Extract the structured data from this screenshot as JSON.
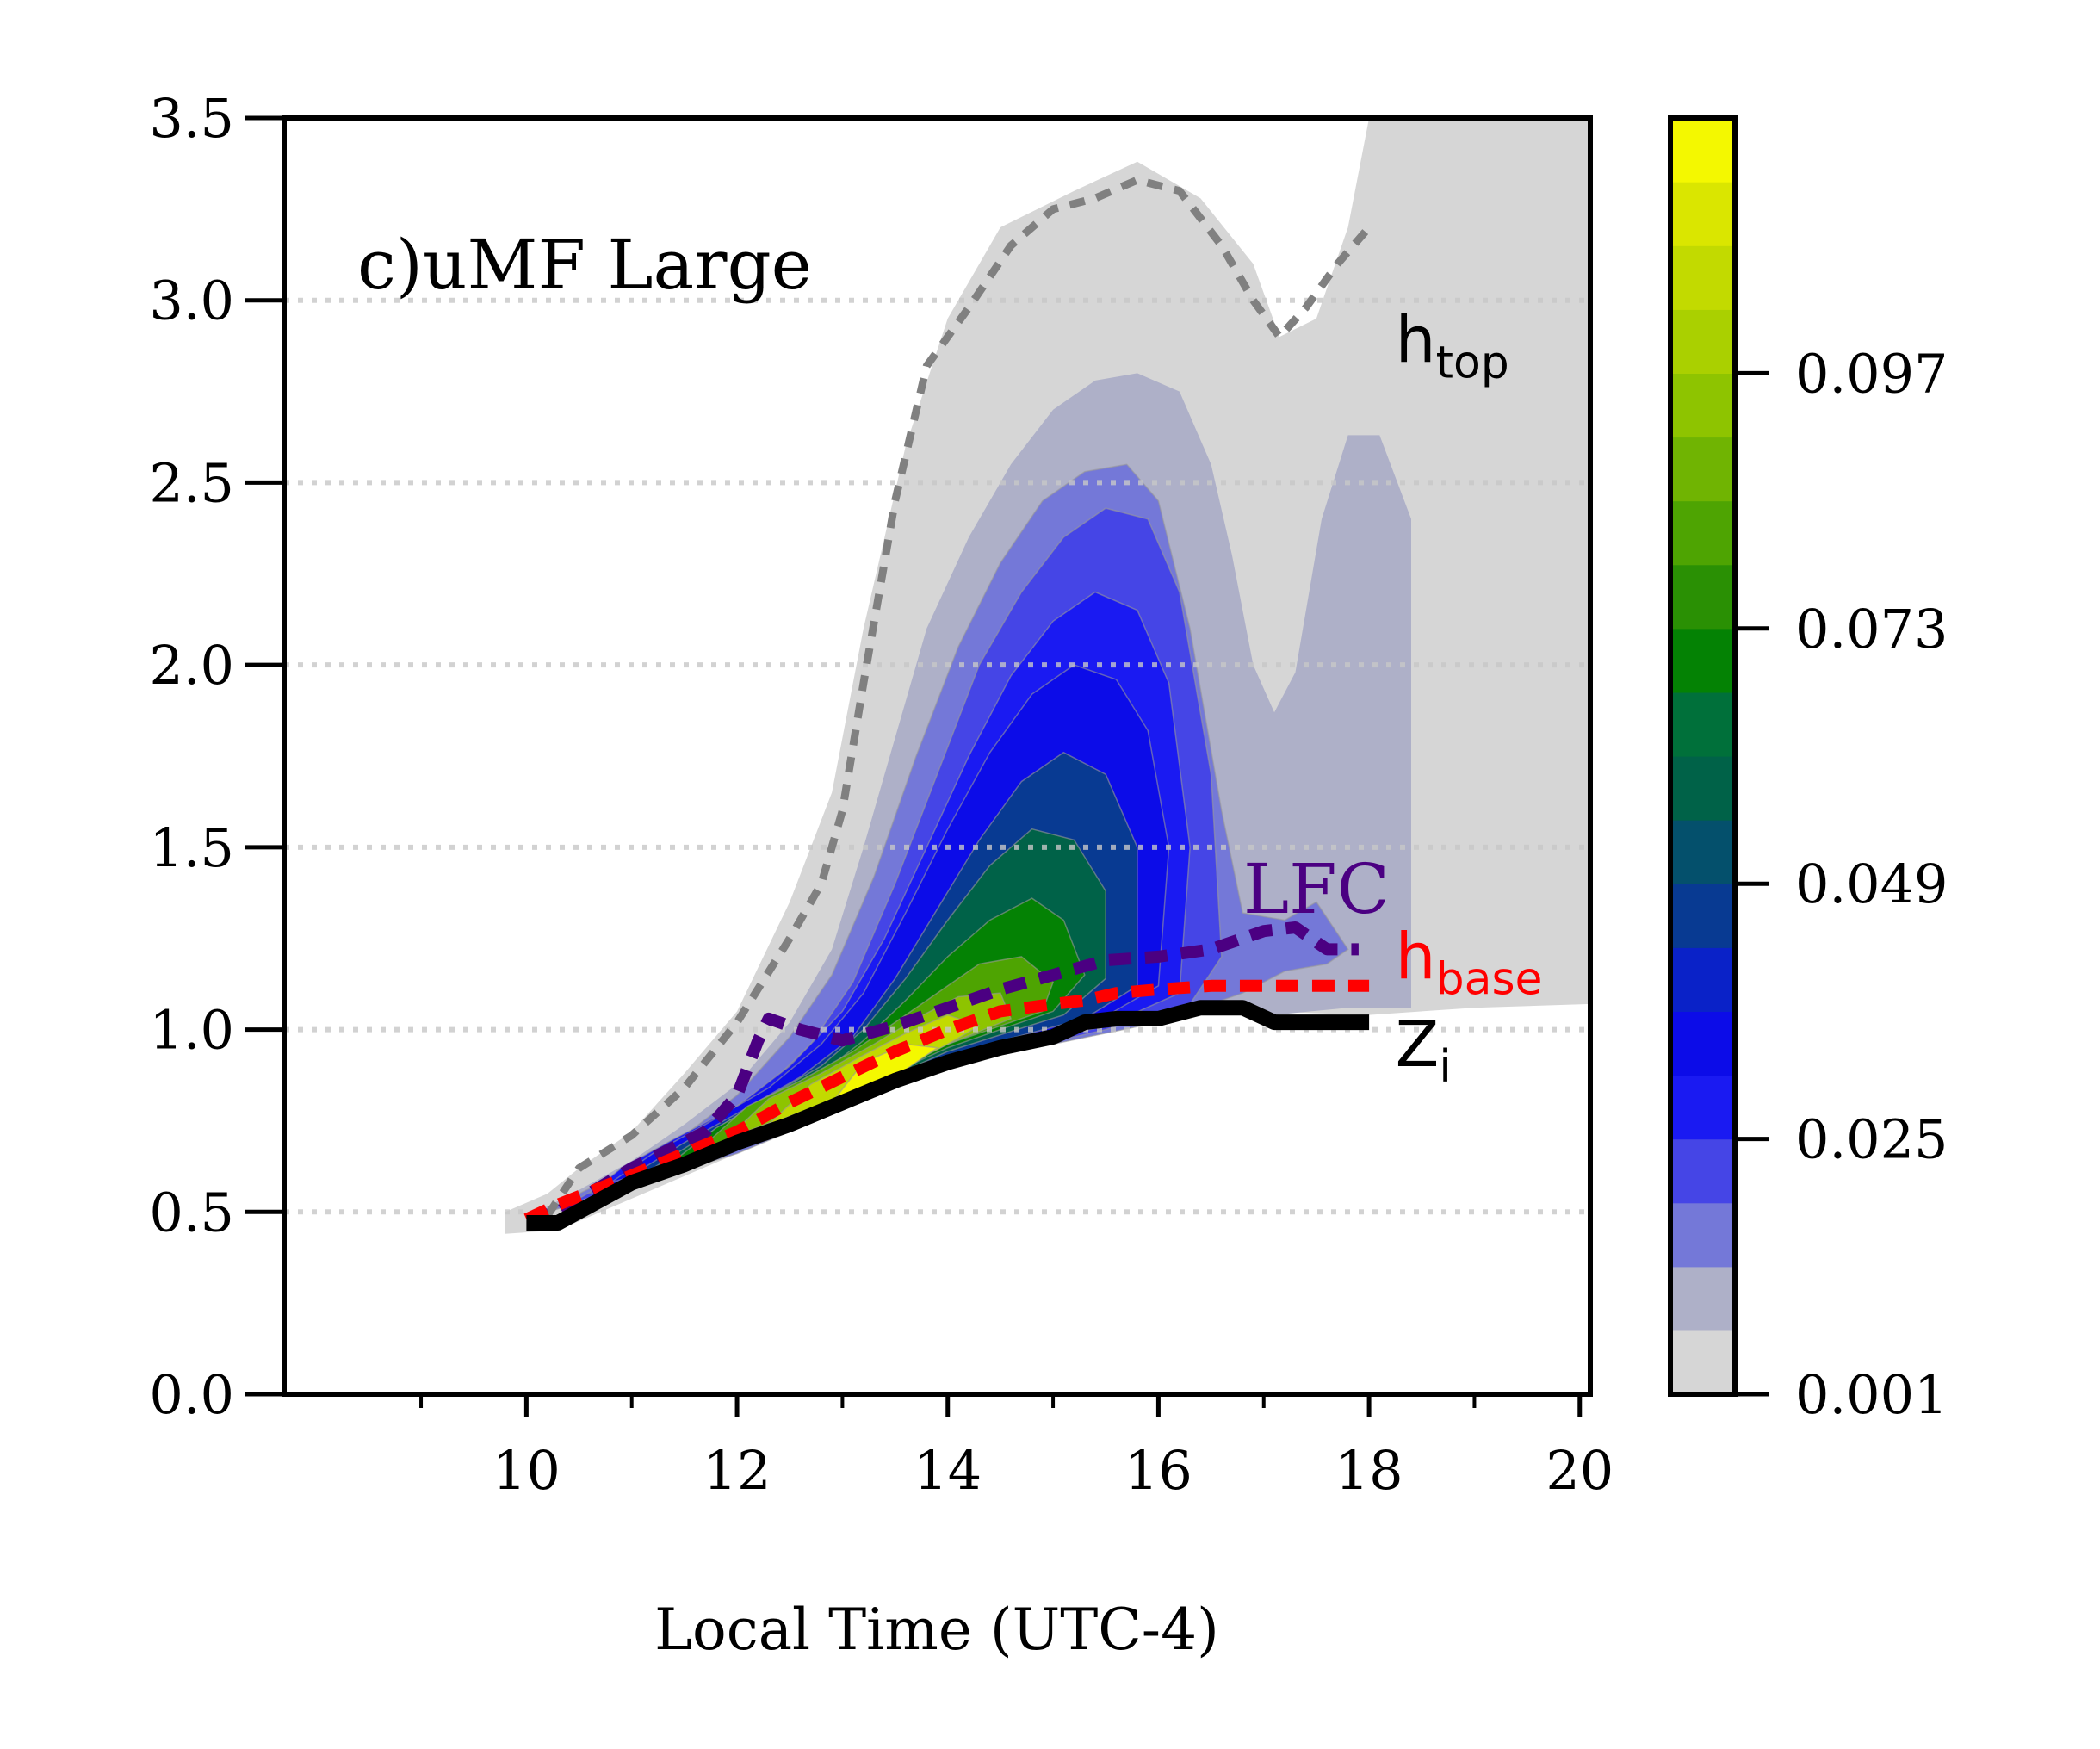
{
  "chart_data": {
    "type": "contour",
    "title": "c)uMF Large",
    "xlabel": "Local Time (UTC-4)",
    "ylabel": "",
    "xlim": [
      7.7,
      20.1
    ],
    "ylim": [
      0.0,
      3.5
    ],
    "x_ticks_major": [
      "10",
      "12",
      "14",
      "16",
      "18",
      "20"
    ],
    "x_ticks_major_values": [
      10,
      12,
      14,
      16,
      18,
      20
    ],
    "x_ticks_minor_values": [
      9,
      11,
      13,
      15,
      17,
      19
    ],
    "y_ticks": [
      "0.0",
      "0.5",
      "1.0",
      "1.5",
      "2.0",
      "2.5",
      "3.0",
      "3.5"
    ],
    "y_ticks_values": [
      0.0,
      0.5,
      1.0,
      1.5,
      2.0,
      2.5,
      3.0,
      3.5
    ],
    "grid": "horizontal dotted",
    "colorbar": {
      "ticks": [
        "0.001",
        "0.025",
        "0.049",
        "0.073",
        "0.097"
      ],
      "ticks_values": [
        0.001,
        0.025,
        0.049,
        0.073,
        0.097
      ],
      "vmin": 0.001,
      "vmax": 0.121,
      "levels": 20,
      "colors": [
        "#d6d6d6",
        "#aeb0c8",
        "#7478d8",
        "#4545e6",
        "#1a1af2",
        "#0c0ce8",
        "#0a22c8",
        "#083a92",
        "#04506c",
        "#006248",
        "#00703a",
        "#048204",
        "#2a9004",
        "#4ea402",
        "#70b402",
        "#8ec400",
        "#aad000",
        "#c2da00",
        "#dae600",
        "#f4f800"
      ]
    },
    "regions": [
      {
        "level": 0,
        "outline": [
          [
            9.8,
            0.44
          ],
          [
            10.3,
            0.45
          ],
          [
            12.0,
            0.66
          ],
          [
            14.0,
            0.9
          ],
          [
            15.0,
            0.98
          ],
          [
            16.0,
            1.04
          ],
          [
            17.0,
            1.05
          ],
          [
            18.0,
            1.04
          ],
          [
            19.0,
            1.06
          ],
          [
            20.1,
            1.07
          ],
          [
            20.1,
            3.5
          ],
          [
            18.0,
            3.5
          ],
          [
            17.8,
            3.2
          ],
          [
            17.5,
            2.95
          ],
          [
            17.15,
            2.9
          ],
          [
            16.9,
            3.1
          ],
          [
            16.4,
            3.28
          ],
          [
            15.8,
            3.38
          ],
          [
            15.2,
            3.3
          ],
          [
            14.5,
            3.2
          ],
          [
            14.0,
            2.95
          ],
          [
            13.6,
            2.6
          ],
          [
            13.2,
            2.1
          ],
          [
            12.9,
            1.65
          ],
          [
            12.5,
            1.35
          ],
          [
            12.0,
            1.05
          ],
          [
            11.5,
            0.88
          ],
          [
            11.0,
            0.72
          ],
          [
            10.5,
            0.62
          ],
          [
            10.2,
            0.55
          ],
          [
            9.8,
            0.5
          ]
        ]
      },
      {
        "level": 1,
        "outline": [
          [
            10.0,
            0.48
          ],
          [
            12.0,
            0.66
          ],
          [
            14.0,
            0.9
          ],
          [
            16.0,
            1.02
          ],
          [
            16.8,
            1.08
          ],
          [
            17.1,
            1.04
          ],
          [
            17.8,
            1.06
          ],
          [
            18.4,
            1.06
          ],
          [
            18.4,
            2.4
          ],
          [
            18.1,
            2.63
          ],
          [
            17.8,
            2.63
          ],
          [
            17.55,
            2.4
          ],
          [
            17.3,
            1.98
          ],
          [
            17.1,
            1.87
          ],
          [
            16.9,
            2.0
          ],
          [
            16.7,
            2.3
          ],
          [
            16.5,
            2.55
          ],
          [
            16.2,
            2.75
          ],
          [
            15.8,
            2.8
          ],
          [
            15.4,
            2.78
          ],
          [
            15.0,
            2.7
          ],
          [
            14.6,
            2.55
          ],
          [
            14.2,
            2.35
          ],
          [
            13.8,
            2.1
          ],
          [
            13.5,
            1.8
          ],
          [
            13.2,
            1.5
          ],
          [
            12.9,
            1.22
          ],
          [
            12.5,
            1.02
          ],
          [
            12.0,
            0.85
          ],
          [
            11.5,
            0.74
          ],
          [
            11.0,
            0.64
          ],
          [
            10.5,
            0.56
          ],
          [
            10.1,
            0.5
          ]
        ]
      },
      {
        "level": 2,
        "outline": [
          [
            10.2,
            0.5
          ],
          [
            12.0,
            0.66
          ],
          [
            14.0,
            0.9
          ],
          [
            16.0,
            1.02
          ],
          [
            16.8,
            1.1
          ],
          [
            17.2,
            1.16
          ],
          [
            17.6,
            1.18
          ],
          [
            17.8,
            1.22
          ],
          [
            17.5,
            1.35
          ],
          [
            17.2,
            1.3
          ],
          [
            16.8,
            1.32
          ],
          [
            16.6,
            1.6
          ],
          [
            16.3,
            2.1
          ],
          [
            16.0,
            2.45
          ],
          [
            15.7,
            2.55
          ],
          [
            15.3,
            2.53
          ],
          [
            14.9,
            2.45
          ],
          [
            14.5,
            2.28
          ],
          [
            14.1,
            2.05
          ],
          [
            13.7,
            1.75
          ],
          [
            13.3,
            1.42
          ],
          [
            12.9,
            1.15
          ],
          [
            12.5,
            0.98
          ],
          [
            12.0,
            0.82
          ],
          [
            11.5,
            0.71
          ],
          [
            11.0,
            0.62
          ],
          [
            10.5,
            0.55
          ]
        ]
      },
      {
        "level": 3,
        "outline": [
          [
            10.4,
            0.52
          ],
          [
            12.0,
            0.67
          ],
          [
            14.0,
            0.9
          ],
          [
            15.5,
            1.0
          ],
          [
            16.3,
            1.07
          ],
          [
            16.6,
            1.2
          ],
          [
            16.5,
            1.7
          ],
          [
            16.2,
            2.2
          ],
          [
            15.9,
            2.4
          ],
          [
            15.5,
            2.43
          ],
          [
            15.1,
            2.35
          ],
          [
            14.7,
            2.2
          ],
          [
            14.3,
            2.0
          ],
          [
            13.9,
            1.7
          ],
          [
            13.5,
            1.4
          ],
          [
            13.1,
            1.13
          ],
          [
            12.7,
            0.96
          ],
          [
            12.2,
            0.82
          ],
          [
            11.6,
            0.71
          ],
          [
            11.0,
            0.62
          ]
        ]
      },
      {
        "level": 4,
        "outline": [
          [
            10.6,
            0.55
          ],
          [
            12.0,
            0.68
          ],
          [
            14.0,
            0.91
          ],
          [
            15.5,
            1.01
          ],
          [
            16.2,
            1.1
          ],
          [
            16.3,
            1.5
          ],
          [
            16.1,
            1.95
          ],
          [
            15.8,
            2.15
          ],
          [
            15.4,
            2.2
          ],
          [
            15.0,
            2.12
          ],
          [
            14.6,
            1.97
          ],
          [
            14.2,
            1.75
          ],
          [
            13.8,
            1.5
          ],
          [
            13.4,
            1.25
          ],
          [
            13.0,
            1.05
          ],
          [
            12.5,
            0.9
          ],
          [
            12.0,
            0.79
          ],
          [
            11.4,
            0.7
          ],
          [
            10.9,
            0.62
          ]
        ]
      },
      {
        "level": 5,
        "outline": [
          [
            10.8,
            0.58
          ],
          [
            12.2,
            0.7
          ],
          [
            14.0,
            0.92
          ],
          [
            15.4,
            1.02
          ],
          [
            16.0,
            1.12
          ],
          [
            16.1,
            1.5
          ],
          [
            15.9,
            1.82
          ],
          [
            15.6,
            1.96
          ],
          [
            15.2,
            2.0
          ],
          [
            14.8,
            1.92
          ],
          [
            14.4,
            1.76
          ],
          [
            14.0,
            1.55
          ],
          [
            13.6,
            1.32
          ],
          [
            13.2,
            1.1
          ],
          [
            12.8,
            0.96
          ],
          [
            12.3,
            0.84
          ],
          [
            11.7,
            0.74
          ],
          [
            11.2,
            0.66
          ]
        ]
      },
      {
        "level": 7,
        "outline": [
          [
            11.0,
            0.6
          ],
          [
            12.5,
            0.74
          ],
          [
            14.0,
            0.93
          ],
          [
            15.3,
            1.03
          ],
          [
            15.8,
            1.12
          ],
          [
            15.8,
            1.5
          ],
          [
            15.5,
            1.7
          ],
          [
            15.1,
            1.76
          ],
          [
            14.7,
            1.68
          ],
          [
            14.3,
            1.52
          ],
          [
            13.9,
            1.33
          ],
          [
            13.5,
            1.14
          ],
          [
            13.1,
            0.98
          ],
          [
            12.6,
            0.87
          ],
          [
            12.0,
            0.77
          ],
          [
            11.5,
            0.69
          ]
        ]
      },
      {
        "level": 9,
        "outline": [
          [
            11.2,
            0.62
          ],
          [
            12.6,
            0.76
          ],
          [
            14.0,
            0.94
          ],
          [
            15.1,
            1.04
          ],
          [
            15.5,
            1.14
          ],
          [
            15.5,
            1.38
          ],
          [
            15.2,
            1.52
          ],
          [
            14.8,
            1.55
          ],
          [
            14.4,
            1.45
          ],
          [
            14.0,
            1.3
          ],
          [
            13.6,
            1.14
          ],
          [
            13.2,
            1.0
          ],
          [
            12.8,
            0.9
          ],
          [
            12.2,
            0.8
          ],
          [
            11.7,
            0.71
          ]
        ]
      },
      {
        "level": 11,
        "outline": [
          [
            11.4,
            0.64
          ],
          [
            12.7,
            0.78
          ],
          [
            14.0,
            0.95
          ],
          [
            15.0,
            1.05
          ],
          [
            15.3,
            1.15
          ],
          [
            15.1,
            1.3
          ],
          [
            14.8,
            1.36
          ],
          [
            14.4,
            1.3
          ],
          [
            14.0,
            1.2
          ],
          [
            13.6,
            1.08
          ],
          [
            13.2,
            0.97
          ],
          [
            12.8,
            0.88
          ],
          [
            12.3,
            0.81
          ],
          [
            11.8,
            0.73
          ]
        ]
      },
      {
        "level": 13,
        "outline": [
          [
            11.6,
            0.66
          ],
          [
            12.8,
            0.8
          ],
          [
            14.0,
            0.96
          ],
          [
            14.9,
            1.05
          ],
          [
            15.0,
            1.13
          ],
          [
            14.7,
            1.2
          ],
          [
            14.3,
            1.18
          ],
          [
            13.9,
            1.1
          ],
          [
            13.5,
            1.02
          ],
          [
            13.1,
            0.94
          ],
          [
            12.6,
            0.86
          ],
          [
            12.1,
            0.79
          ]
        ]
      },
      {
        "level": 15,
        "outline": [
          [
            11.9,
            0.7
          ],
          [
            13.0,
            0.82
          ],
          [
            14.0,
            0.96
          ],
          [
            14.6,
            1.03
          ],
          [
            14.5,
            1.1
          ],
          [
            14.1,
            1.09
          ],
          [
            13.7,
            1.03
          ],
          [
            13.3,
            0.96
          ],
          [
            12.8,
            0.88
          ],
          [
            12.3,
            0.81
          ]
        ]
      },
      {
        "level": 17,
        "outline": [
          [
            12.3,
            0.74
          ],
          [
            13.2,
            0.84
          ],
          [
            14.0,
            0.96
          ],
          [
            14.3,
            1.01
          ],
          [
            14.0,
            1.04
          ],
          [
            13.6,
            0.99
          ],
          [
            13.2,
            0.93
          ],
          [
            12.7,
            0.85
          ]
        ]
      },
      {
        "level": 19,
        "outline": [
          [
            12.9,
            0.8
          ],
          [
            13.5,
            0.87
          ],
          [
            13.9,
            0.95
          ],
          [
            13.6,
            0.96
          ],
          [
            13.2,
            0.91
          ]
        ]
      }
    ],
    "series": [
      {
        "name": "h_top",
        "style": "dashed",
        "color": "#808080",
        "x": [
          10.2,
          10.5,
          11.0,
          11.5,
          12.0,
          12.5,
          12.8,
          13.0,
          13.2,
          13.5,
          13.8,
          14.2,
          14.6,
          15.0,
          15.4,
          15.8,
          16.2,
          16.6,
          16.9,
          17.15,
          17.4,
          17.7,
          18.0
        ],
        "y": [
          0.49,
          0.62,
          0.71,
          0.84,
          1.02,
          1.25,
          1.4,
          1.6,
          1.95,
          2.45,
          2.82,
          2.98,
          3.15,
          3.25,
          3.28,
          3.33,
          3.3,
          3.15,
          3.0,
          2.9,
          2.98,
          3.1,
          3.2
        ]
      },
      {
        "name": "LFC",
        "style": "dashed",
        "color": "#4b0082",
        "x": [
          10.0,
          10.3,
          11.0,
          11.7,
          12.0,
          12.2,
          12.3,
          12.6,
          13.0,
          13.5,
          14.0,
          14.5,
          15.0,
          15.5,
          16.0,
          16.5,
          17.0,
          17.3,
          17.6,
          17.9
        ],
        "y": [
          0.48,
          0.5,
          0.62,
          0.72,
          0.82,
          0.97,
          1.03,
          1.0,
          0.97,
          1.01,
          1.06,
          1.11,
          1.15,
          1.19,
          1.2,
          1.22,
          1.27,
          1.28,
          1.22,
          1.22
        ]
      },
      {
        "name": "h_base",
        "style": "dashed",
        "color": "#ff0000",
        "x": [
          10.0,
          10.3,
          11.0,
          11.5,
          12.0,
          12.5,
          13.0,
          13.5,
          14.0,
          14.5,
          15.0,
          15.3,
          15.6,
          16.0,
          16.5,
          17.0,
          17.5,
          18.0
        ],
        "y": [
          0.48,
          0.52,
          0.6,
          0.66,
          0.72,
          0.8,
          0.87,
          0.94,
          1.0,
          1.05,
          1.07,
          1.08,
          1.1,
          1.11,
          1.12,
          1.12,
          1.12,
          1.12
        ]
      },
      {
        "name": "Z_i",
        "style": "solid",
        "color": "#000000",
        "x": [
          10.0,
          10.3,
          11.0,
          11.5,
          12.0,
          12.5,
          13.0,
          13.5,
          14.0,
          14.5,
          15.0,
          15.3,
          15.6,
          16.0,
          16.4,
          16.8,
          17.1,
          17.5,
          18.0
        ],
        "y": [
          0.47,
          0.47,
          0.58,
          0.63,
          0.69,
          0.74,
          0.8,
          0.86,
          0.91,
          0.95,
          0.98,
          1.02,
          1.03,
          1.03,
          1.06,
          1.06,
          1.02,
          1.02,
          1.02
        ]
      }
    ],
    "annotations": [
      {
        "text": "h",
        "sub": "top",
        "color": "#000000",
        "x": 18.25,
        "y": 2.83,
        "font": "sans"
      },
      {
        "text": "LFC",
        "sub": "",
        "color": "#4b0082",
        "x": 17.5,
        "y": 1.32,
        "font": "serif"
      },
      {
        "text": "h",
        "sub": "base",
        "color": "#ff0000",
        "x": 18.25,
        "y": 1.14,
        "font": "sans"
      },
      {
        "text": "Z",
        "sub": "i",
        "color": "#000000",
        "x": 18.25,
        "y": 0.9,
        "font": "sans"
      }
    ]
  }
}
